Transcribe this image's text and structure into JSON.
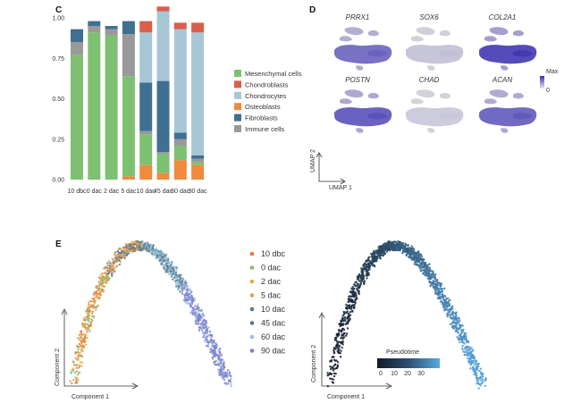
{
  "panels": {
    "c": "C",
    "d": "D",
    "e": "E"
  },
  "chart_data": [
    {
      "type": "bar",
      "panel": "C",
      "stacked": true,
      "categories": [
        "10 dbc",
        "0 dac",
        "2 dac",
        "5 dac",
        "10 dac",
        "45 dac",
        "60 dac",
        "90 dac"
      ],
      "ylim": [
        0,
        1
      ],
      "yticks": [
        "0.00",
        "0.25",
        "0.50",
        "0.75",
        "1.00"
      ],
      "series": [
        {
          "name": "Immune cells",
          "color": "#999999",
          "values": [
            0.08,
            0.04,
            0.04,
            0.26,
            0.02,
            0.01,
            0.04,
            0.02
          ]
        },
        {
          "name": "Fibroblasts",
          "color": "#3f6f91",
          "values": [
            0.08,
            0.03,
            0.02,
            0.08,
            0.3,
            0.44,
            0.04,
            0.02
          ]
        },
        {
          "name": "Chondrocytes",
          "color": "#a7c7d6",
          "values": [
            0.0,
            0.0,
            0.0,
            0.0,
            0.31,
            0.43,
            0.64,
            0.76
          ]
        },
        {
          "name": "Chondroblasts",
          "color": "#d95f4b",
          "values": [
            0.0,
            0.0,
            0.0,
            0.0,
            0.07,
            0.03,
            0.04,
            0.06
          ]
        },
        {
          "name": "Osteoblasts",
          "color": "#f08a3e",
          "values": [
            0.0,
            0.0,
            0.0,
            0.02,
            0.09,
            0.04,
            0.12,
            0.09
          ]
        },
        {
          "name": "Mesenchymal cells",
          "color": "#7ec072",
          "values": [
            0.77,
            0.91,
            0.89,
            0.62,
            0.19,
            0.12,
            0.09,
            0.02
          ]
        }
      ],
      "stack_order_bottom_to_top": [
        "Osteoblasts",
        "Mesenchymal cells",
        "Immune cells",
        "Fibroblasts",
        "Chondrocytes",
        "Chondroblasts"
      ],
      "legend": [
        "Mesenchymal cells",
        "Chondroblasts",
        "Chondrocytes",
        "Osteoblasts",
        "Fibroblasts",
        "Immune cells"
      ],
      "legend_placement": "right"
    }
  ],
  "umap": {
    "genes": [
      "PRRX1",
      "SOX6",
      "COL2A1",
      "POSTN",
      "CHAD",
      "ACAN"
    ],
    "xlabel": "UMAP 1",
    "ylabel": "UMAP 2",
    "scale_max": "Max",
    "scale_min": "0",
    "expression": [
      0.7,
      0.15,
      0.95,
      0.8,
      0.1,
      0.75
    ],
    "low_color": "#d8d8dc",
    "high_color": "#3b2fb0"
  },
  "trajectory": {
    "xlabel": "Component 1",
    "ylabel": "Component 2",
    "legend": [
      {
        "label": "10 dbc",
        "color": "#f07a3a"
      },
      {
        "label": "0 dac",
        "color": "#7ec072"
      },
      {
        "label": "2 dac",
        "color": "#e7a94a"
      },
      {
        "label": "5 dac",
        "color": "#d9a560"
      },
      {
        "label": "10 dac",
        "color": "#4f7fa5"
      },
      {
        "label": "45 dac",
        "color": "#5a7a8a"
      },
      {
        "label": "60 dac",
        "color": "#9ec1d3"
      },
      {
        "label": "90 dac",
        "color": "#7b7fd4"
      }
    ],
    "pseudotime_label": "Pseudotime",
    "pseudotime_ticks": [
      "0",
      "10",
      "20",
      "30"
    ]
  }
}
